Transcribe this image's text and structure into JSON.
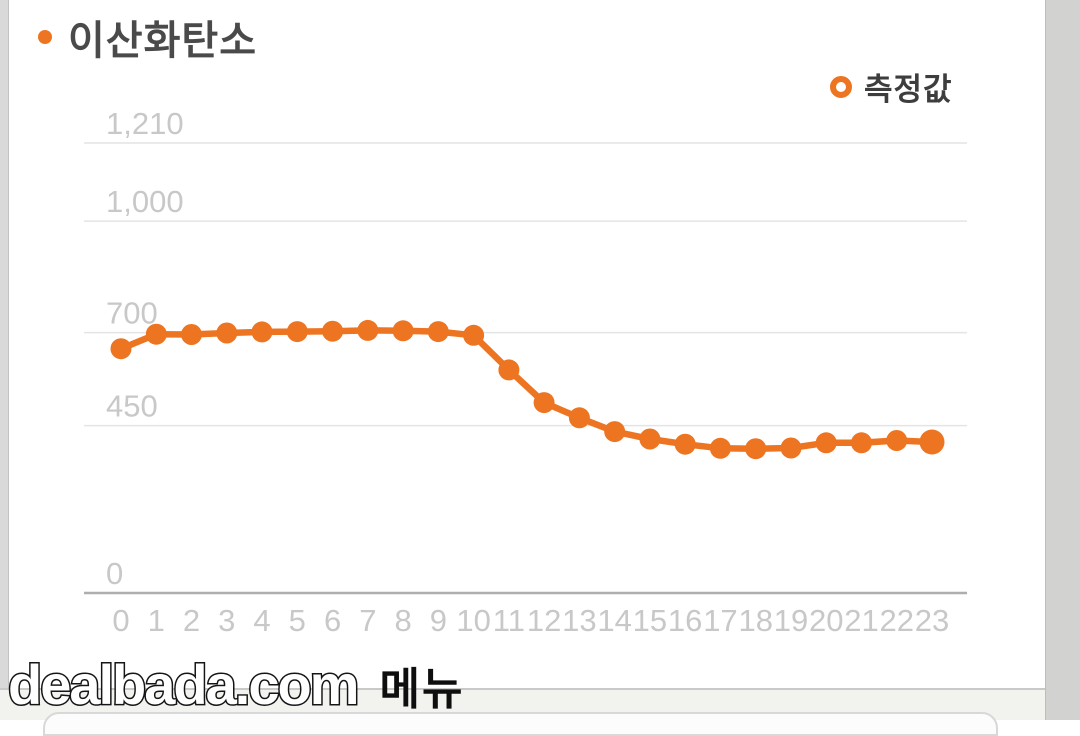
{
  "header": {
    "title": "이산화탄소"
  },
  "legend": {
    "label": "측정값"
  },
  "watermark": {
    "site": "dealbada.com",
    "menu": "메뉴"
  },
  "colors": {
    "accent": "#ED7420",
    "gridline": "#e4e4e4",
    "axis_line": "#aeaeae",
    "tick_label": "#c8c8c8",
    "title_text": "#4a4a4a",
    "legend_text": "#3d3d3d"
  },
  "chart_data": {
    "type": "line",
    "title": "이산화탄소",
    "x": [
      0,
      1,
      2,
      3,
      4,
      5,
      6,
      7,
      8,
      9,
      10,
      11,
      12,
      13,
      14,
      15,
      16,
      17,
      18,
      19,
      20,
      21,
      22,
      23
    ],
    "x_tick_labels": [
      "0",
      "1",
      "2",
      "3",
      "4",
      "5",
      "6",
      "7",
      "8",
      "9",
      "10",
      "11",
      "12",
      "13",
      "14",
      "15",
      "16",
      "17",
      "18",
      "19",
      "20",
      "21",
      "22",
      "23"
    ],
    "series": [
      {
        "name": "측정값",
        "values": [
          657,
          696,
          695,
          699,
          702,
          703,
          704,
          706,
          705,
          703,
          693,
          600,
          512,
          471,
          434,
          414,
          400,
          389,
          388,
          390,
          404,
          404,
          410,
          406
        ]
      }
    ],
    "y_ticks": [
      0,
      450,
      700,
      1000,
      1210
    ],
    "y_tick_labels": [
      "0",
      "450",
      "700",
      "1,000",
      "1,210"
    ],
    "ylim": [
      0,
      1210
    ],
    "grid": true,
    "legend_position": "top-right",
    "marker": "circle",
    "line_color": "#ED7420"
  }
}
